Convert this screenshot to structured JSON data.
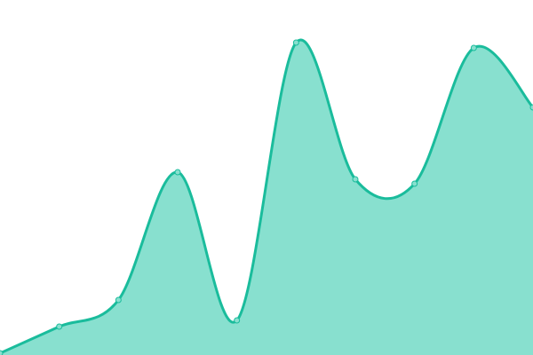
{
  "chart_data": {
    "type": "area",
    "x": [
      0,
      1,
      2,
      3,
      4,
      5,
      6,
      7,
      8,
      9
    ],
    "values": [
      2,
      32,
      62,
      206,
      39,
      352,
      198,
      193,
      346,
      279
    ],
    "ylim": [
      0,
      400
    ],
    "grid": false,
    "smooth": true,
    "colors": {
      "line": "#1abc9c",
      "fill": "#88e0cf",
      "marker": "#88e0cf"
    }
  }
}
